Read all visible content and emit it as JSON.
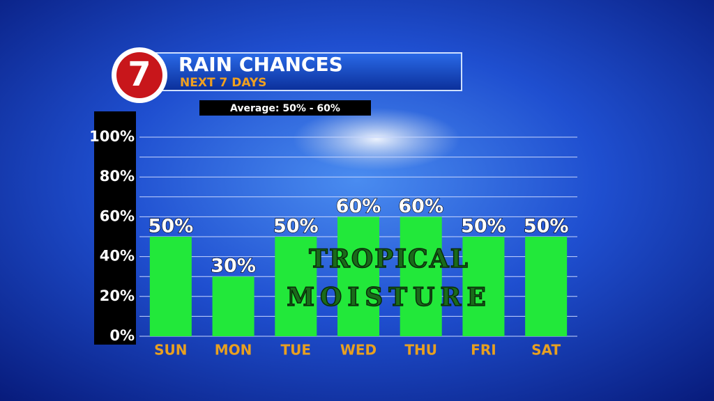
{
  "chart_data": {
    "type": "bar",
    "title": "RAIN CHANCES",
    "subtitle": "NEXT 7 DAYS",
    "logo": "7",
    "annotation": "Average: 50% - 60%",
    "overlay_text": [
      "TROPICAL",
      "MOISTURE"
    ],
    "categories": [
      "SUN",
      "MON",
      "TUE",
      "WED",
      "THU",
      "FRI",
      "SAT"
    ],
    "values": [
      50,
      30,
      50,
      60,
      60,
      50,
      50
    ],
    "value_labels": [
      "50%",
      "30%",
      "50%",
      "60%",
      "60%",
      "50%",
      "50%"
    ],
    "color": "#22e83a",
    "ylim": [
      0,
      100
    ],
    "yticks": [
      {
        "value": 0,
        "label": "0%"
      },
      {
        "value": 20,
        "label": "20%"
      },
      {
        "value": 40,
        "label": "40%"
      },
      {
        "value": 60,
        "label": "60%"
      },
      {
        "value": 80,
        "label": "80%"
      },
      {
        "value": 100,
        "label": "100%"
      }
    ],
    "minor_yticks": [
      10,
      30,
      50,
      70,
      90
    ],
    "grid": true
  }
}
